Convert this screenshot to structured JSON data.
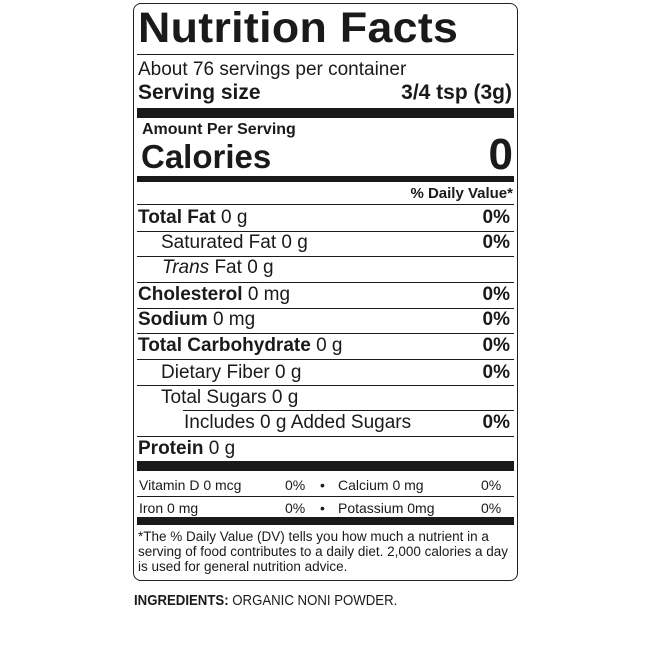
{
  "label": {
    "title": "Nutrition Facts",
    "servings": "About 76 servings per container",
    "serving_size_label": "Serving size",
    "serving_size_value": "3/4 tsp (3g)",
    "amount_per_serving": "Amount Per Serving",
    "calories_label": "Calories",
    "calories_value": "0",
    "dv_header": "% Daily Value*",
    "nutrients": [
      {
        "name": "Total Fat",
        "amount": "0 g",
        "dv": "0%"
      },
      {
        "name": "Saturated Fat",
        "amount": "0 g",
        "dv": "0%"
      },
      {
        "name": "Trans",
        "name_suffix": "Fat",
        "amount": "0 g",
        "dv": ""
      },
      {
        "name": "Cholesterol",
        "amount": "0 mg",
        "dv": "0%"
      },
      {
        "name": "Sodium",
        "amount": "0 mg",
        "dv": "0%"
      },
      {
        "name": "Total Carbohydrate",
        "amount": "0 g",
        "dv": "0%"
      },
      {
        "name": "Dietary Fiber",
        "amount": "0 g",
        "dv": "0%"
      },
      {
        "name": "Total Sugars",
        "amount": "0 g",
        "dv": ""
      },
      {
        "name": "Includes 0 g Added Sugars",
        "amount": "",
        "dv": "0%"
      },
      {
        "name": "Protein",
        "amount": "0 g",
        "dv": ""
      }
    ],
    "vitamins": [
      {
        "name": "Vitamin D 0 mcg",
        "dv": "0%"
      },
      {
        "name": "Calcium 0 mg",
        "dv": "0%"
      },
      {
        "name": "Iron 0 mg",
        "dv": "0%"
      },
      {
        "name": "Potassium 0mg",
        "dv": "0%"
      }
    ],
    "bullet": "•",
    "footnote": "*The % Daily Value (DV) tells you how much a nutrient in a serving of food contributes to a daily diet. 2,000 calories a day is used for general nutrition advice."
  },
  "ingredients": {
    "label": "INGREDIENTS:",
    "text": " ORGANIC NONI POWDER."
  }
}
